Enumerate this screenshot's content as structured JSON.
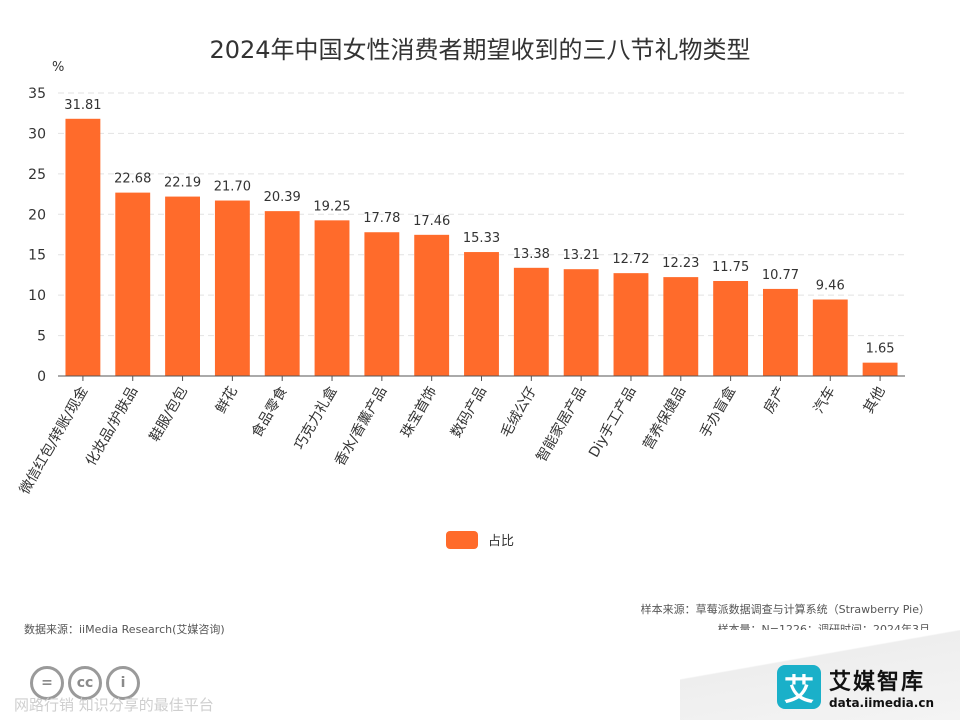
{
  "chart_data": {
    "type": "bar",
    "title": "2024年中国女性消费者期望收到的三八节礼物类型",
    "ylabel": "%",
    "xlabel": "",
    "ylim": [
      0,
      35
    ],
    "yticks": [
      0,
      5,
      10,
      15,
      20,
      25,
      30,
      35
    ],
    "grid": true,
    "legend_position": "bottom-center",
    "categories": [
      "微信红包/转账/现金",
      "化妆品/护肤品",
      "鞋服/包包",
      "鲜花",
      "食品零食",
      "巧克力礼盒",
      "香水/香薰产品",
      "珠宝首饰",
      "数码产品",
      "毛绒公仔",
      "智能家居产品",
      "Diy手工产品",
      "营养保健品",
      "手办盲盒",
      "房产",
      "汽车",
      "其他"
    ],
    "series": [
      {
        "name": "占比",
        "color": "#ff6b2b",
        "values": [
          31.81,
          22.68,
          22.19,
          21.7,
          20.39,
          19.25,
          17.78,
          17.46,
          15.33,
          13.38,
          13.21,
          12.72,
          12.23,
          11.75,
          10.77,
          9.46,
          1.65
        ],
        "labels": [
          "31.81",
          "22.68",
          "22.19",
          "21.70",
          "20.39",
          "19.25",
          "17.78",
          "17.46",
          "15.33",
          "13.38",
          "13.21",
          "12.72",
          "12.23",
          "11.75",
          "10.77",
          "9.46",
          "1.65"
        ]
      }
    ]
  },
  "footer": {
    "sample_source": "样本来源：草莓派数据调查与计算系统（Strawberry Pie）",
    "sample_size": "样本量：N=1226；调研时间：2024年3月",
    "data_source": "数据来源：iiMedia Research(艾媒咨询)",
    "watermark": "网路行销 知识分享的最佳平台"
  },
  "brand": {
    "logo_char": "艾",
    "name": "艾媒智库",
    "url": "data.iimedia.cn"
  },
  "license_icons": [
    "=",
    "cc",
    "i"
  ]
}
